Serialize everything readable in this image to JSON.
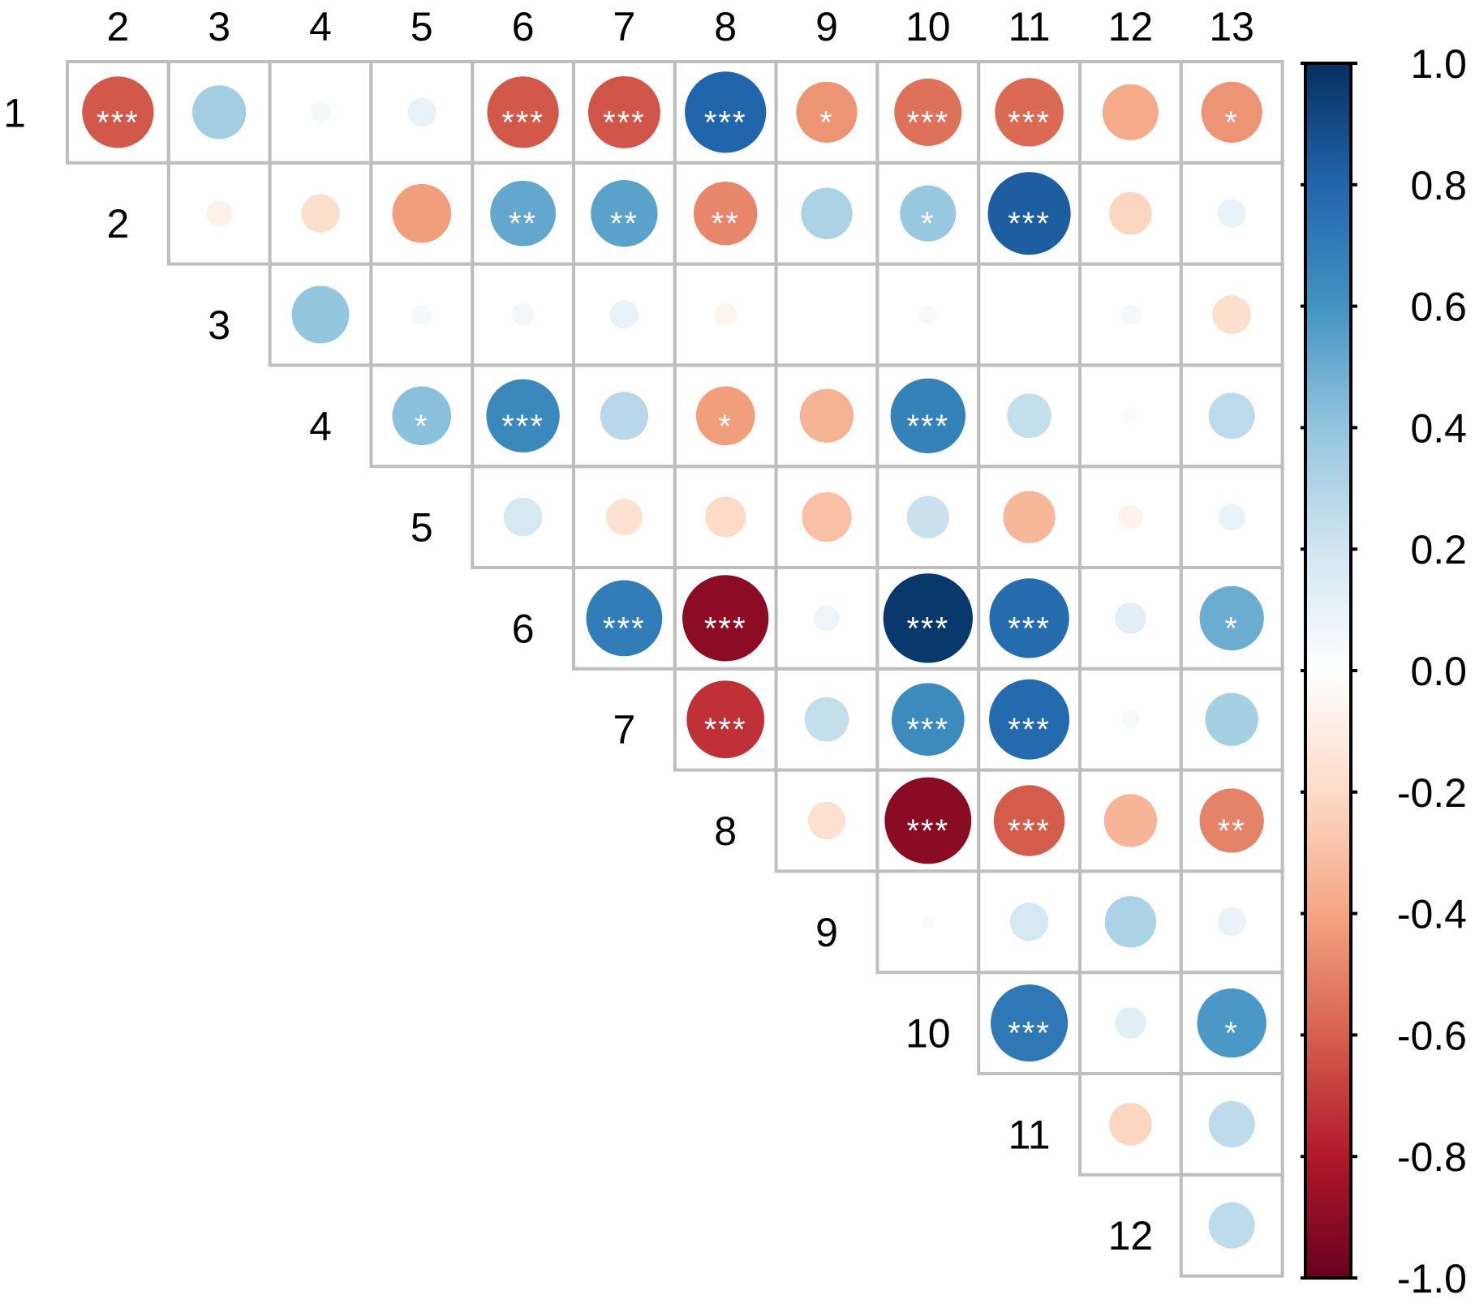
{
  "chart_data": {
    "type": "heatmap",
    "style": "correlation-circles-upper-triangle",
    "variables": [
      "1",
      "2",
      "3",
      "4",
      "5",
      "6",
      "7",
      "8",
      "9",
      "10",
      "11",
      "12",
      "13"
    ],
    "column_labels": [
      "2",
      "3",
      "4",
      "5",
      "6",
      "7",
      "8",
      "9",
      "10",
      "11",
      "12",
      "13"
    ],
    "row_labels": [
      "1",
      "2",
      "3",
      "4",
      "5",
      "6",
      "7",
      "8",
      "9",
      "10",
      "11",
      "12"
    ],
    "colorbar": {
      "range": [
        -1.0,
        1.0
      ],
      "tick_labels": [
        "1.0",
        "0.8",
        "0.6",
        "0.4",
        "0.2",
        "0.0",
        "-0.2",
        "-0.4",
        "-0.6",
        "-0.8",
        "-1.0"
      ],
      "colors": [
        "#67001F",
        "#B2182B",
        "#D6604D",
        "#F4A582",
        "#FDDBC7",
        "#FFFFFF",
        "#D1E5F0",
        "#92C5DE",
        "#4393C3",
        "#2166AC",
        "#053061"
      ]
    },
    "cells": [
      {
        "row": "1",
        "col": "2",
        "r": -0.62,
        "sig": "***"
      },
      {
        "row": "1",
        "col": "3",
        "r": 0.35,
        "sig": ""
      },
      {
        "row": "1",
        "col": "4",
        "r": 0.05,
        "sig": ""
      },
      {
        "row": "1",
        "col": "5",
        "r": 0.1,
        "sig": ""
      },
      {
        "row": "1",
        "col": "6",
        "r": -0.62,
        "sig": "***"
      },
      {
        "row": "1",
        "col": "7",
        "r": -0.63,
        "sig": "***"
      },
      {
        "row": "1",
        "col": "8",
        "r": 0.8,
        "sig": "***"
      },
      {
        "row": "1",
        "col": "9",
        "r": -0.45,
        "sig": "*"
      },
      {
        "row": "1",
        "col": "10",
        "r": -0.55,
        "sig": "***"
      },
      {
        "row": "1",
        "col": "11",
        "r": -0.57,
        "sig": "***"
      },
      {
        "row": "1",
        "col": "12",
        "r": -0.38,
        "sig": ""
      },
      {
        "row": "1",
        "col": "13",
        "r": -0.45,
        "sig": "*"
      },
      {
        "row": "2",
        "col": "3",
        "r": -0.08,
        "sig": ""
      },
      {
        "row": "2",
        "col": "4",
        "r": -0.18,
        "sig": ""
      },
      {
        "row": "2",
        "col": "5",
        "r": -0.42,
        "sig": ""
      },
      {
        "row": "2",
        "col": "6",
        "r": 0.52,
        "sig": "**"
      },
      {
        "row": "2",
        "col": "7",
        "r": 0.54,
        "sig": "**"
      },
      {
        "row": "2",
        "col": "8",
        "r": -0.49,
        "sig": "**"
      },
      {
        "row": "2",
        "col": "9",
        "r": 0.32,
        "sig": ""
      },
      {
        "row": "2",
        "col": "10",
        "r": 0.38,
        "sig": "*"
      },
      {
        "row": "2",
        "col": "11",
        "r": 0.83,
        "sig": "***"
      },
      {
        "row": "2",
        "col": "12",
        "r": -0.22,
        "sig": ""
      },
      {
        "row": "2",
        "col": "13",
        "r": 0.1,
        "sig": ""
      },
      {
        "row": "3",
        "col": "4",
        "r": 0.4,
        "sig": ""
      },
      {
        "row": "3",
        "col": "5",
        "r": 0.05,
        "sig": ""
      },
      {
        "row": "3",
        "col": "6",
        "r": 0.06,
        "sig": ""
      },
      {
        "row": "3",
        "col": "7",
        "r": 0.1,
        "sig": ""
      },
      {
        "row": "3",
        "col": "8",
        "r": -0.06,
        "sig": ""
      },
      {
        "row": "3",
        "col": "9",
        "r": 0.0,
        "sig": ""
      },
      {
        "row": "3",
        "col": "10",
        "r": 0.04,
        "sig": ""
      },
      {
        "row": "3",
        "col": "11",
        "r": 0.0,
        "sig": ""
      },
      {
        "row": "3",
        "col": "12",
        "r": 0.05,
        "sig": ""
      },
      {
        "row": "3",
        "col": "13",
        "r": -0.18,
        "sig": ""
      },
      {
        "row": "4",
        "col": "5",
        "r": 0.42,
        "sig": "*"
      },
      {
        "row": "4",
        "col": "6",
        "r": 0.65,
        "sig": "***"
      },
      {
        "row": "4",
        "col": "7",
        "r": 0.28,
        "sig": ""
      },
      {
        "row": "4",
        "col": "8",
        "r": -0.42,
        "sig": "*"
      },
      {
        "row": "4",
        "col": "9",
        "r": -0.35,
        "sig": ""
      },
      {
        "row": "4",
        "col": "10",
        "r": 0.68,
        "sig": "***"
      },
      {
        "row": "4",
        "col": "11",
        "r": 0.24,
        "sig": ""
      },
      {
        "row": "4",
        "col": "12",
        "r": 0.03,
        "sig": ""
      },
      {
        "row": "4",
        "col": "13",
        "r": 0.26,
        "sig": ""
      },
      {
        "row": "5",
        "col": "6",
        "r": 0.18,
        "sig": ""
      },
      {
        "row": "5",
        "col": "7",
        "r": -0.16,
        "sig": ""
      },
      {
        "row": "5",
        "col": "8",
        "r": -0.2,
        "sig": ""
      },
      {
        "row": "5",
        "col": "9",
        "r": -0.3,
        "sig": ""
      },
      {
        "row": "5",
        "col": "10",
        "r": 0.22,
        "sig": ""
      },
      {
        "row": "5",
        "col": "11",
        "r": -0.33,
        "sig": ""
      },
      {
        "row": "5",
        "col": "12",
        "r": -0.07,
        "sig": ""
      },
      {
        "row": "5",
        "col": "13",
        "r": 0.09,
        "sig": ""
      },
      {
        "row": "6",
        "col": "7",
        "r": 0.7,
        "sig": "***"
      },
      {
        "row": "6",
        "col": "8",
        "r": -0.9,
        "sig": "***"
      },
      {
        "row": "6",
        "col": "9",
        "r": 0.08,
        "sig": ""
      },
      {
        "row": "6",
        "col": "10",
        "r": 0.97,
        "sig": "***"
      },
      {
        "row": "6",
        "col": "11",
        "r": 0.77,
        "sig": "***"
      },
      {
        "row": "6",
        "col": "12",
        "r": 0.12,
        "sig": ""
      },
      {
        "row": "6",
        "col": "13",
        "r": 0.5,
        "sig": "*"
      },
      {
        "row": "7",
        "col": "8",
        "r": -0.73,
        "sig": "***"
      },
      {
        "row": "7",
        "col": "9",
        "r": 0.24,
        "sig": ""
      },
      {
        "row": "7",
        "col": "10",
        "r": 0.64,
        "sig": "***"
      },
      {
        "row": "7",
        "col": "11",
        "r": 0.78,
        "sig": "***"
      },
      {
        "row": "7",
        "col": "12",
        "r": 0.04,
        "sig": ""
      },
      {
        "row": "7",
        "col": "13",
        "r": 0.34,
        "sig": ""
      },
      {
        "row": "8",
        "col": "9",
        "r": -0.17,
        "sig": ""
      },
      {
        "row": "8",
        "col": "10",
        "r": -0.91,
        "sig": "***"
      },
      {
        "row": "8",
        "col": "11",
        "r": -0.61,
        "sig": "***"
      },
      {
        "row": "8",
        "col": "12",
        "r": -0.34,
        "sig": ""
      },
      {
        "row": "8",
        "col": "13",
        "r": -0.5,
        "sig": "**"
      },
      {
        "row": "9",
        "col": "10",
        "r": 0.02,
        "sig": ""
      },
      {
        "row": "9",
        "col": "11",
        "r": 0.18,
        "sig": ""
      },
      {
        "row": "9",
        "col": "12",
        "r": 0.32,
        "sig": ""
      },
      {
        "row": "9",
        "col": "13",
        "r": 0.1,
        "sig": ""
      },
      {
        "row": "10",
        "col": "11",
        "r": 0.72,
        "sig": "***"
      },
      {
        "row": "10",
        "col": "12",
        "r": 0.12,
        "sig": ""
      },
      {
        "row": "10",
        "col": "13",
        "r": 0.58,
        "sig": "*"
      },
      {
        "row": "11",
        "col": "12",
        "r": -0.22,
        "sig": ""
      },
      {
        "row": "11",
        "col": "13",
        "r": 0.26,
        "sig": ""
      },
      {
        "row": "12",
        "col": "13",
        "r": 0.26,
        "sig": ""
      }
    ]
  }
}
